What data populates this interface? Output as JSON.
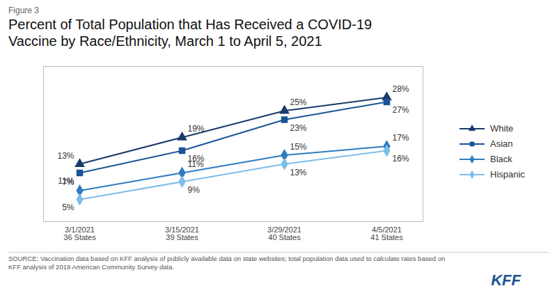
{
  "chart_data": {
    "type": "line",
    "title": "Percent of Total Population that Has Received a COVID-19\nVaccine by Race/Ethnicity, March 1 to April 5, 2021",
    "categories": [
      "3/1/2021\n36 States",
      "3/15/2021\n39 States",
      "3/29/2021\n40 States",
      "4/5/2021\n41 States"
    ],
    "series": [
      {
        "name": "White",
        "color": "#1a3a6b",
        "marker": "triangle",
        "values": [
          13,
          19,
          25,
          28
        ],
        "value_labels": [
          "13%",
          "19%",
          "25%",
          "28%"
        ]
      },
      {
        "name": "Asian",
        "color": "#1a5496",
        "marker": "square",
        "values": [
          11,
          16,
          23,
          27
        ],
        "value_labels": [
          "11%",
          "16%",
          "23%",
          "27%"
        ]
      },
      {
        "name": "Black",
        "color": "#2e7cc0",
        "marker": "diamond",
        "values": [
          7,
          11,
          15,
          17
        ],
        "value_labels": [
          "7%",
          "11%",
          "15%",
          "17%"
        ]
      },
      {
        "name": "Hispanic",
        "color": "#7dbde8",
        "marker": "diamond",
        "values": [
          5,
          9,
          13,
          16
        ],
        "value_labels": [
          "5%",
          "9%",
          "13%",
          "16%"
        ]
      }
    ],
    "ylim": [
      0,
      35
    ],
    "tick_labels": "x",
    "data_labels": true,
    "legend": "right",
    "annotations": [
      {
        "text": "Figure 3"
      },
      {
        "text": "SOURCE: Vaccination data based on KFF analysis of publicly available data on state websites; total population data used to calculate rates based on\nKFF analysis of 2019 American Community Survey data."
      },
      {
        "text": "KFF",
        "color": "#1a5496"
      }
    ]
  }
}
